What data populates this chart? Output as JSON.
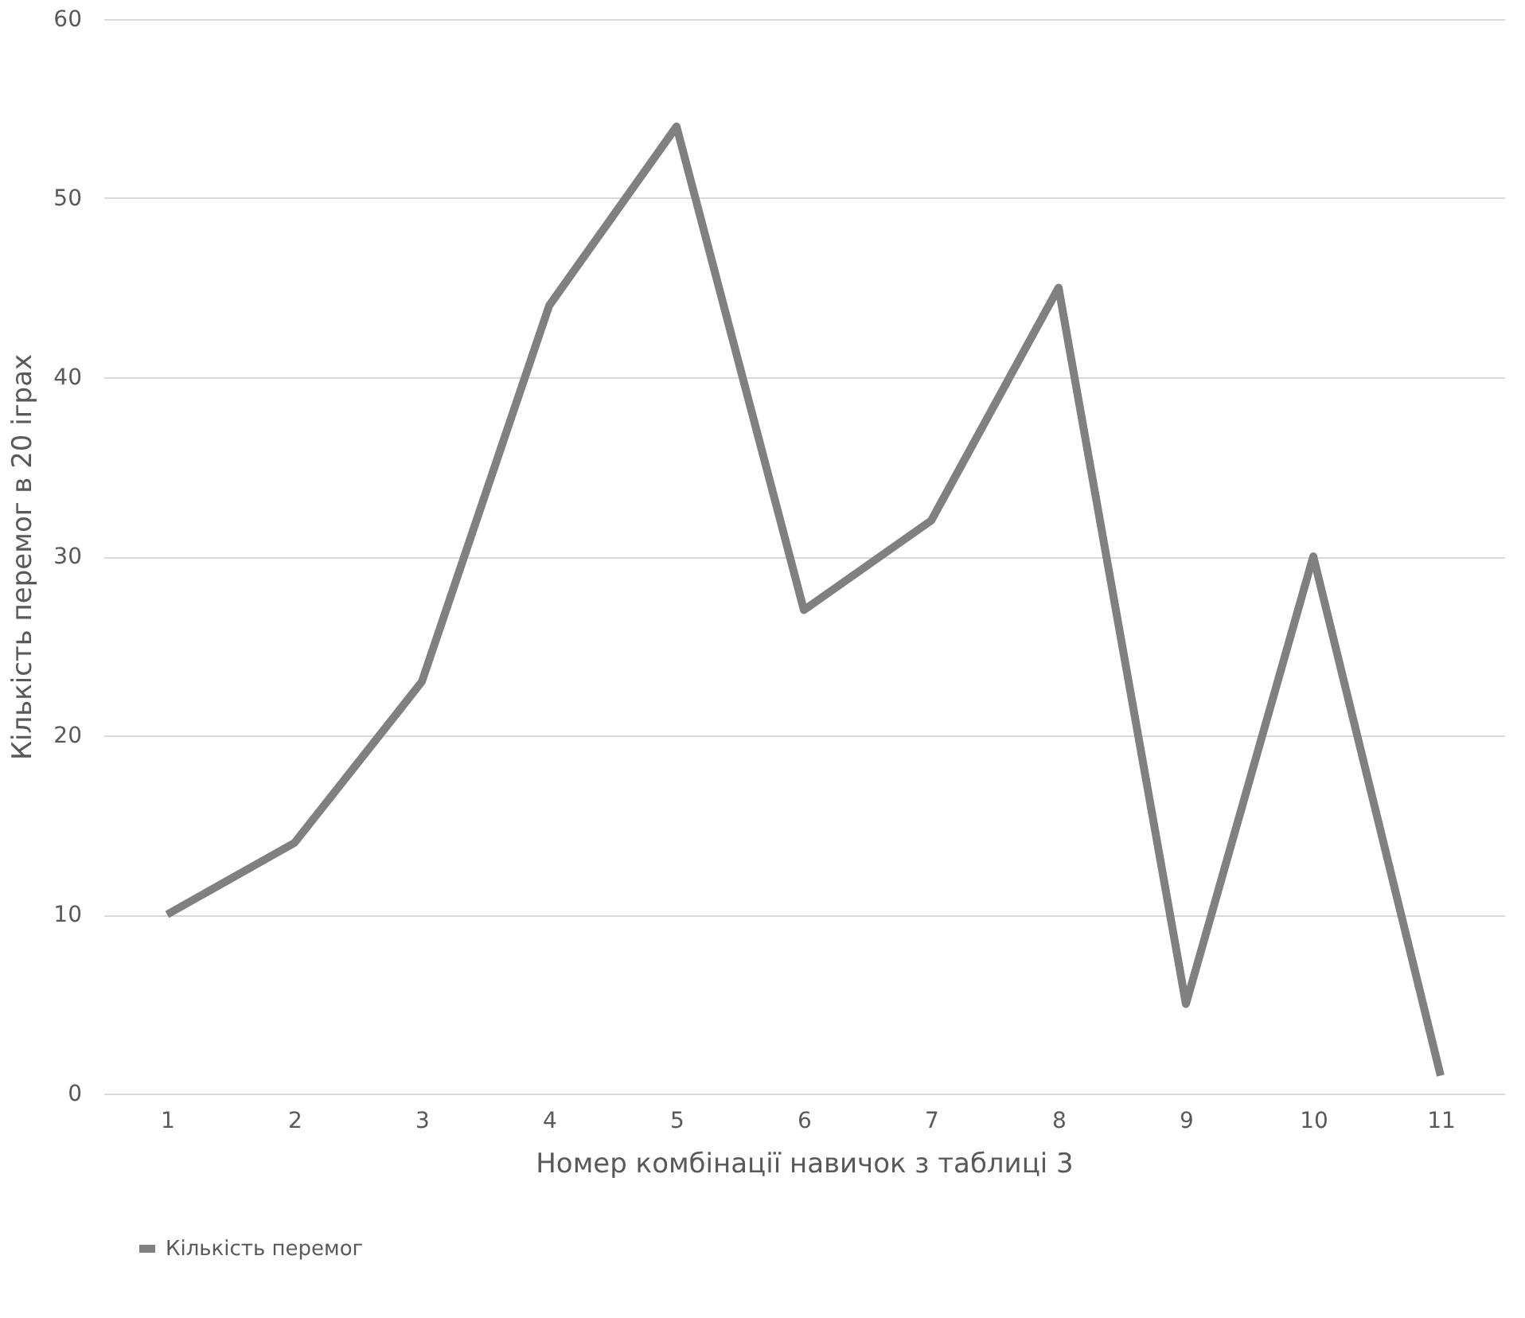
{
  "chart_data": {
    "type": "line",
    "xlabel": "Номер комбінації навичок з таблиці 3",
    "ylabel": "Кількість перемог в 20 іграх",
    "categories": [
      "1",
      "2",
      "3",
      "4",
      "5",
      "6",
      "7",
      "8",
      "9",
      "10",
      "11"
    ],
    "series": [
      {
        "name": "Кількість перемог",
        "color": "#808080",
        "values": [
          10,
          14,
          23,
          44,
          54,
          27,
          32,
          45,
          5,
          30,
          1
        ]
      }
    ],
    "ylim": [
      0,
      60
    ],
    "yticks": [
      0,
      10,
      20,
      30,
      40,
      50,
      60
    ],
    "grid": "y",
    "legend": "bottom",
    "marker": "none",
    "line_style": "solid"
  }
}
